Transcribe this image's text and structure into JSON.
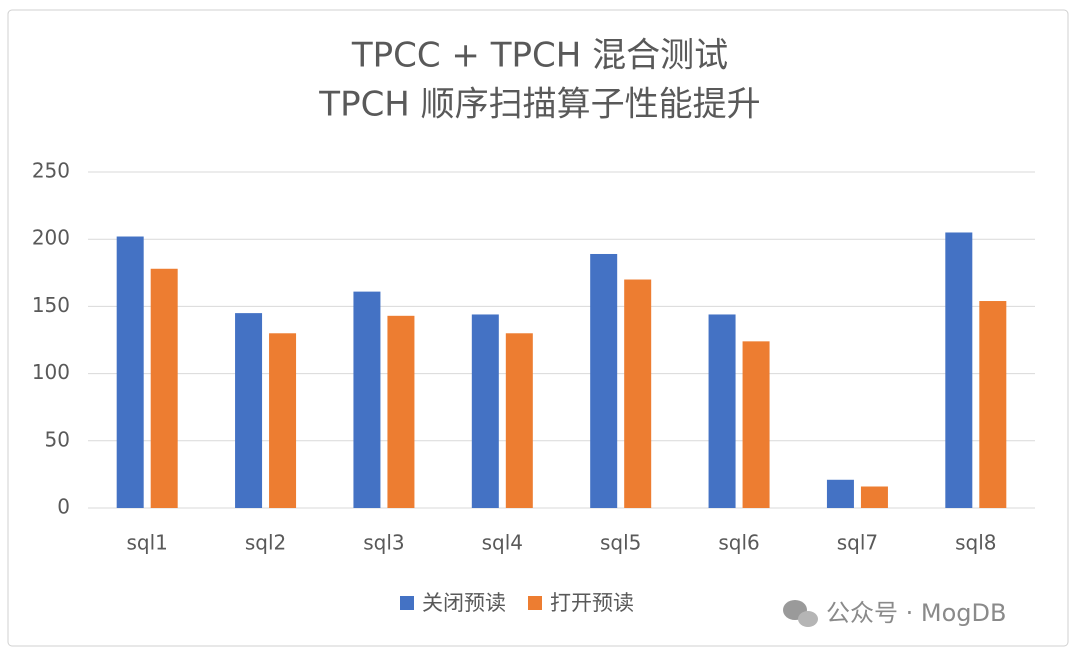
{
  "chart_data": {
    "type": "bar",
    "title": "TPCC + TPCH 混合测试",
    "subtitle": "TPCH 顺序扫描算子性能提升",
    "categories": [
      "sql1",
      "sql2",
      "sql3",
      "sql4",
      "sql5",
      "sql6",
      "sql7",
      "sql8"
    ],
    "series": [
      {
        "name": "关闭预读",
        "color": "#4472c4",
        "values": [
          202,
          145,
          161,
          144,
          189,
          144,
          21,
          205
        ]
      },
      {
        "name": "打开预读",
        "color": "#ed7d31",
        "values": [
          178,
          130,
          143,
          130,
          170,
          124,
          16,
          154
        ]
      }
    ],
    "ylim": [
      0,
      250
    ],
    "yticks": [
      0,
      50,
      100,
      150,
      200,
      250
    ],
    "grid": true,
    "legend": "bottom",
    "watermark": "公众号 · MogDB"
  }
}
